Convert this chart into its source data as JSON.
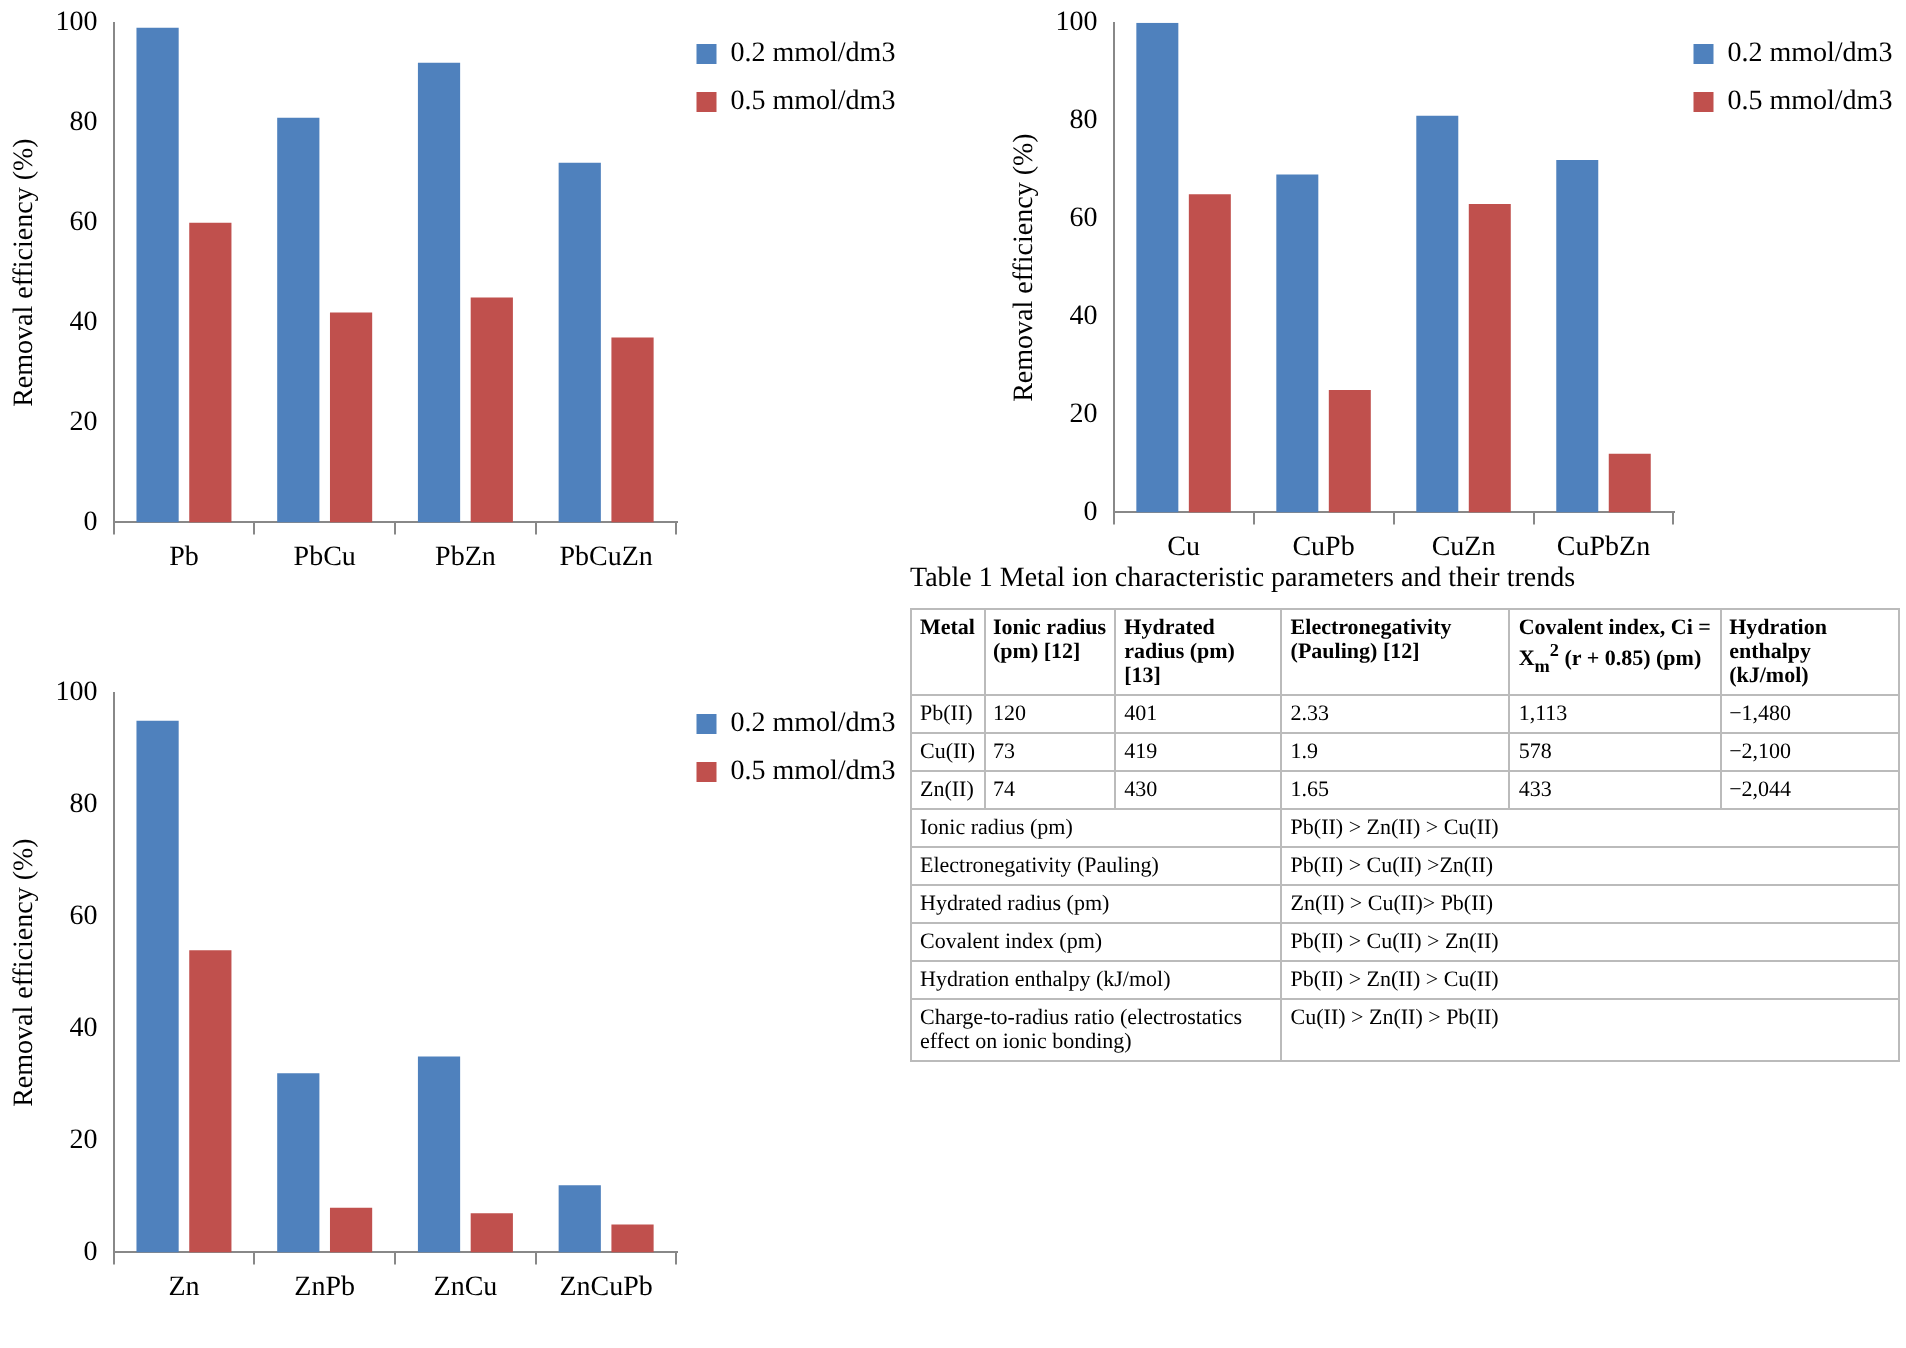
{
  "chart_data": [
    {
      "type": "bar",
      "ylabel": "Removal efficiency (%)",
      "categories": [
        "Pb",
        "PbCu",
        "PbZn",
        "PbCuZn"
      ],
      "series": [
        {
          "name": "0.2 mmol/dm3",
          "color": "#4f81bd",
          "values": [
            99,
            81,
            92,
            72
          ]
        },
        {
          "name": "0.5 mmol/dm3",
          "color": "#c0504d",
          "values": [
            60,
            42,
            45,
            37
          ]
        }
      ],
      "ylim": [
        0,
        100
      ],
      "yticks": [
        0,
        20,
        40,
        60,
        80,
        100
      ],
      "grid": false,
      "legend": "top right"
    },
    {
      "type": "bar",
      "ylabel": "Removal efficiency (%)",
      "categories": [
        "Cu",
        "CuPb",
        "CuZn",
        "CuPbZn"
      ],
      "series": [
        {
          "name": "0.2 mmol/dm3",
          "color": "#4f81bd",
          "values": [
            100,
            69,
            81,
            72
          ]
        },
        {
          "name": "0.5 mmol/dm3",
          "color": "#c0504d",
          "values": [
            65,
            25,
            63,
            12
          ]
        }
      ],
      "ylim": [
        0,
        100
      ],
      "yticks": [
        0,
        20,
        40,
        60,
        80,
        100
      ],
      "grid": false,
      "legend": "top right"
    },
    {
      "type": "bar",
      "ylabel": "Removal efficiency (%)",
      "categories": [
        "Zn",
        "ZnPb",
        "ZnCu",
        "ZnCuPb"
      ],
      "series": [
        {
          "name": "0.2 mmol/dm3",
          "color": "#4f81bd",
          "values": [
            95,
            32,
            35,
            12
          ]
        },
        {
          "name": "0.5 mmol/dm3",
          "color": "#c0504d",
          "values": [
            54,
            8,
            7,
            5
          ]
        }
      ],
      "ylim": [
        0,
        100
      ],
      "yticks": [
        0,
        20,
        40,
        60,
        80,
        100
      ],
      "grid": false,
      "legend": "top right"
    },
    {
      "type": "other",
      "title": "Table 1 Metal ion characteristic parameters and their trends",
      "categories": [
        "Metal",
        "Ionic radius (pm) [12]",
        "Hydrated radius (pm) [13]",
        "Electronegativity (Pauling) [12]",
        "Covalent index, Ci = X$_{m}$$^{2}$ (r + 0.85) (pm)",
        "Hydration enthalpy (kJ/mol)"
      ],
      "y_categories": [
        "Pb(II)",
        "Cu(II)",
        "Zn(II)",
        "Ionic radius (pm)",
        "Electronegativity (Pauling)",
        "Hydrated radius (pm)",
        "Covalent index (pm)",
        "Hydration enthalpy (kJ/mol)",
        "Charge-to-radius ratio (electrostatics effect on ionic bonding)"
      ],
      "cell_labels": [
        [
          "120",
          "401",
          "2.33",
          "1,113",
          "−1,480"
        ],
        [
          "73",
          "419",
          "1.9",
          "578",
          "−2,100"
        ],
        [
          "74",
          "430",
          "1.65",
          "433",
          "−2,044"
        ],
        [
          "Pb(II) > Zn(II) > Cu(II)"
        ],
        [
          "Pb(II) > Cu(II) >Zn(II)"
        ],
        [
          "Zn(II) > Cu(II)> Pb(II)"
        ],
        [
          "Pb(II) > Cu(II) > Zn(II)"
        ],
        [
          "Pb(II) > Zn(II) > Cu(II)"
        ],
        [
          "Cu(II) > Zn(II) > Pb(II)"
        ]
      ]
    }
  ]
}
